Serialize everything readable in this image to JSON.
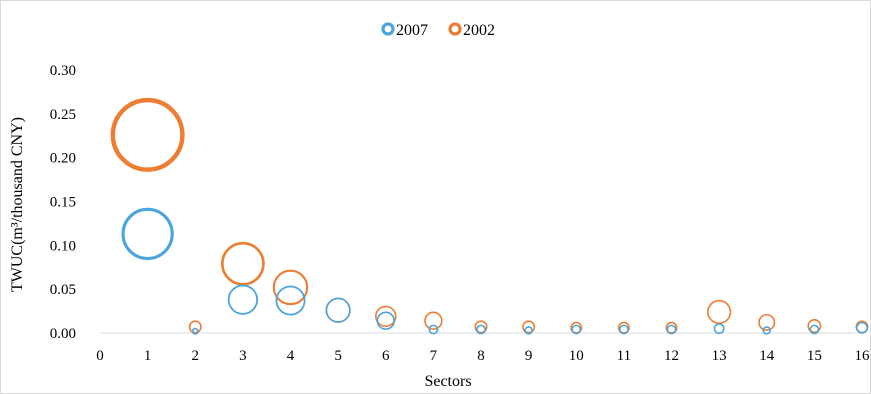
{
  "chart_data": {
    "type": "bubble",
    "title": "",
    "xlabel": "Sectors",
    "ylabel": "TWUC(m³/thousand CNY)",
    "xlim": [
      0,
      16
    ],
    "ylim": [
      0,
      0.3
    ],
    "x_ticks": [
      "0",
      "1",
      "2",
      "3",
      "4",
      "5",
      "6",
      "7",
      "8",
      "9",
      "10",
      "11",
      "12",
      "13",
      "14",
      "15",
      "16"
    ],
    "y_ticks": [
      "0.00",
      "0.05",
      "0.10",
      "0.15",
      "0.20",
      "0.25",
      "0.30"
    ],
    "grid": false,
    "legend_position": "top-center",
    "series": [
      {
        "name": "2002",
        "color": "#ED7D31",
        "x": [
          1,
          2,
          3,
          4,
          5,
          6,
          7,
          8,
          9,
          10,
          11,
          12,
          13,
          14,
          15,
          16
        ],
        "y": [
          0.226,
          0.007,
          0.079,
          0.052,
          0.026,
          0.019,
          0.014,
          0.007,
          0.007,
          0.006,
          0.006,
          0.006,
          0.024,
          0.012,
          0.008,
          0.007
        ]
      },
      {
        "name": "2007",
        "color": "#4AA5DC",
        "x": [
          1,
          2,
          3,
          4,
          5,
          6,
          7,
          8,
          9,
          10,
          11,
          12,
          13,
          14,
          15,
          16
        ],
        "y": [
          0.113,
          0.002,
          0.038,
          0.037,
          0.026,
          0.014,
          0.004,
          0.004,
          0.003,
          0.004,
          0.004,
          0.004,
          0.005,
          0.003,
          0.004,
          0.006
        ]
      }
    ]
  }
}
